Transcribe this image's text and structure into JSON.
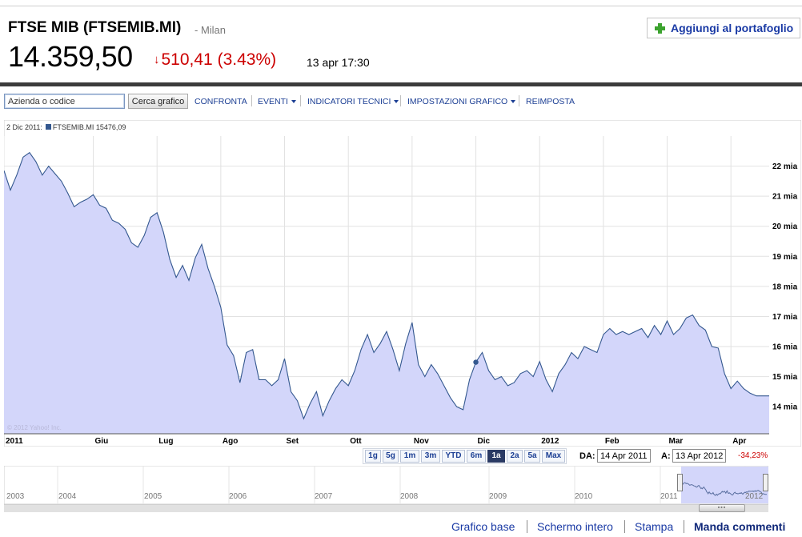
{
  "header": {
    "name": "FTSE MIB (FTSEMIB.MI)",
    "exchange": "- Milan",
    "price": "14.359,50",
    "change": "510,41",
    "change_pct": "(3.43%)",
    "time": "13 apr 17:30",
    "add_button": "Aggiungi al portafoglio",
    "change_direction_icon": "arrow-down-icon",
    "change_color": "#cc0000"
  },
  "toolbar": {
    "search_placeholder": "Azienda o codice",
    "search_button": "Cerca grafico",
    "items": [
      {
        "label": "CONFRONTA",
        "dropdown": false
      },
      {
        "label": "EVENTI",
        "dropdown": true
      },
      {
        "label": "INDICATORI TECNICI",
        "dropdown": true
      },
      {
        "label": "IMPOSTAZIONI GRAFICO",
        "dropdown": true
      },
      {
        "label": "REIMPOSTA",
        "dropdown": false
      }
    ]
  },
  "chart_legend": {
    "date": "2 Dic 2011:",
    "series": "FTSEMIB.MI 15476,09"
  },
  "copyright": "© 2012 Yahoo! Inc.",
  "chart_data": {
    "type": "area",
    "ylim": [
      13.1,
      23.0
    ],
    "y_tick_values": [
      14,
      15,
      16,
      17,
      18,
      19,
      20,
      21,
      22
    ],
    "y_tick_labels": [
      "14 mia",
      "15 mia",
      "16 mia",
      "17 mia",
      "18 mia",
      "19 mia",
      "20 mia",
      "21 mia",
      "22 mia"
    ],
    "x_tick_labels": [
      "2011",
      "Giu",
      "Lug",
      "Ago",
      "Set",
      "Ott",
      "Nov",
      "Dic",
      "2012",
      "Feb",
      "Mar",
      "Apr"
    ],
    "x_tick_positions": [
      0.0,
      1.4,
      2.4,
      3.4,
      4.4,
      5.4,
      6.4,
      7.4,
      8.4,
      9.4,
      10.4,
      11.4
    ],
    "x_range": [
      0.0,
      12.0
    ],
    "grid": true,
    "series_color": "#34588f",
    "fill_color": "#d3d6fa",
    "highlight_point": {
      "x": 7.4,
      "y": 15.48
    },
    "x": [
      0.0,
      0.1,
      0.2,
      0.3,
      0.4,
      0.5,
      0.6,
      0.7,
      0.8,
      0.9,
      1.0,
      1.1,
      1.2,
      1.3,
      1.4,
      1.5,
      1.6,
      1.7,
      1.8,
      1.9,
      2.0,
      2.1,
      2.2,
      2.3,
      2.4,
      2.5,
      2.6,
      2.7,
      2.8,
      2.9,
      3.0,
      3.1,
      3.2,
      3.3,
      3.4,
      3.5,
      3.6,
      3.7,
      3.8,
      3.9,
      4.0,
      4.1,
      4.2,
      4.3,
      4.4,
      4.5,
      4.6,
      4.7,
      4.8,
      4.9,
      5.0,
      5.1,
      5.2,
      5.3,
      5.4,
      5.5,
      5.6,
      5.7,
      5.8,
      5.9,
      6.0,
      6.1,
      6.2,
      6.3,
      6.4,
      6.5,
      6.6,
      6.7,
      6.8,
      6.9,
      7.0,
      7.1,
      7.2,
      7.3,
      7.4,
      7.5,
      7.6,
      7.7,
      7.8,
      7.9,
      8.0,
      8.1,
      8.2,
      8.3,
      8.4,
      8.5,
      8.6,
      8.7,
      8.8,
      8.9,
      9.0,
      9.1,
      9.2,
      9.3,
      9.4,
      9.5,
      9.6,
      9.7,
      9.8,
      9.9,
      10.0,
      10.1,
      10.2,
      10.3,
      10.4,
      10.5,
      10.6,
      10.7,
      10.8,
      10.9,
      11.0,
      11.1,
      11.2,
      11.3,
      11.4,
      11.5,
      11.6,
      11.7,
      11.8,
      11.9,
      12.0
    ],
    "values": [
      21.85,
      21.2,
      21.7,
      22.3,
      22.45,
      22.15,
      21.7,
      22.0,
      21.75,
      21.5,
      21.1,
      20.65,
      20.8,
      20.9,
      21.05,
      20.7,
      20.6,
      20.2,
      20.1,
      19.9,
      19.45,
      19.3,
      19.7,
      20.3,
      20.45,
      19.8,
      18.9,
      18.3,
      18.7,
      18.2,
      18.95,
      19.4,
      18.6,
      18.0,
      17.3,
      16.05,
      15.7,
      14.8,
      15.8,
      15.9,
      14.9,
      14.9,
      14.7,
      14.9,
      15.6,
      14.5,
      14.2,
      13.6,
      14.1,
      14.5,
      13.7,
      14.2,
      14.6,
      14.9,
      14.7,
      15.2,
      15.9,
      16.4,
      15.8,
      16.1,
      16.5,
      15.9,
      15.2,
      16.1,
      16.8,
      15.4,
      15.0,
      15.4,
      15.1,
      14.7,
      14.3,
      14.0,
      13.9,
      14.9,
      15.48,
      15.8,
      15.2,
      14.9,
      15.0,
      14.7,
      14.8,
      15.1,
      15.2,
      15.0,
      15.5,
      14.9,
      14.5,
      15.1,
      15.4,
      15.8,
      15.6,
      16.0,
      15.9,
      15.8,
      16.4,
      16.6,
      16.4,
      16.5,
      16.4,
      16.5,
      16.6,
      16.3,
      16.7,
      16.4,
      16.85,
      16.4,
      16.6,
      16.95,
      17.05,
      16.7,
      16.55,
      16.0,
      15.95,
      15.1,
      14.6,
      14.85,
      14.6,
      14.45,
      14.36,
      14.36,
      14.36
    ]
  },
  "range_buttons": {
    "items": [
      "1g",
      "5g",
      "1m",
      "3m",
      "YTD",
      "6m",
      "1a",
      "2a",
      "5a",
      "Max"
    ],
    "active": "1a"
  },
  "date_range": {
    "from_label": "DA:",
    "from_value": "14 Apr 2011",
    "to_label": "A:",
    "to_value": "13 Apr 2012",
    "change": "-34,23%"
  },
  "navigator": {
    "years": [
      "2003",
      "2004",
      "2005",
      "2006",
      "2007",
      "2008",
      "2009",
      "2010",
      "2011",
      "2012"
    ],
    "thumb_label": "▪▪▪",
    "selection_color": "#d3d6fa"
  },
  "footer": {
    "links": [
      "Grafico base",
      "Schermo intero",
      "Stampa",
      "Manda commenti"
    ]
  }
}
